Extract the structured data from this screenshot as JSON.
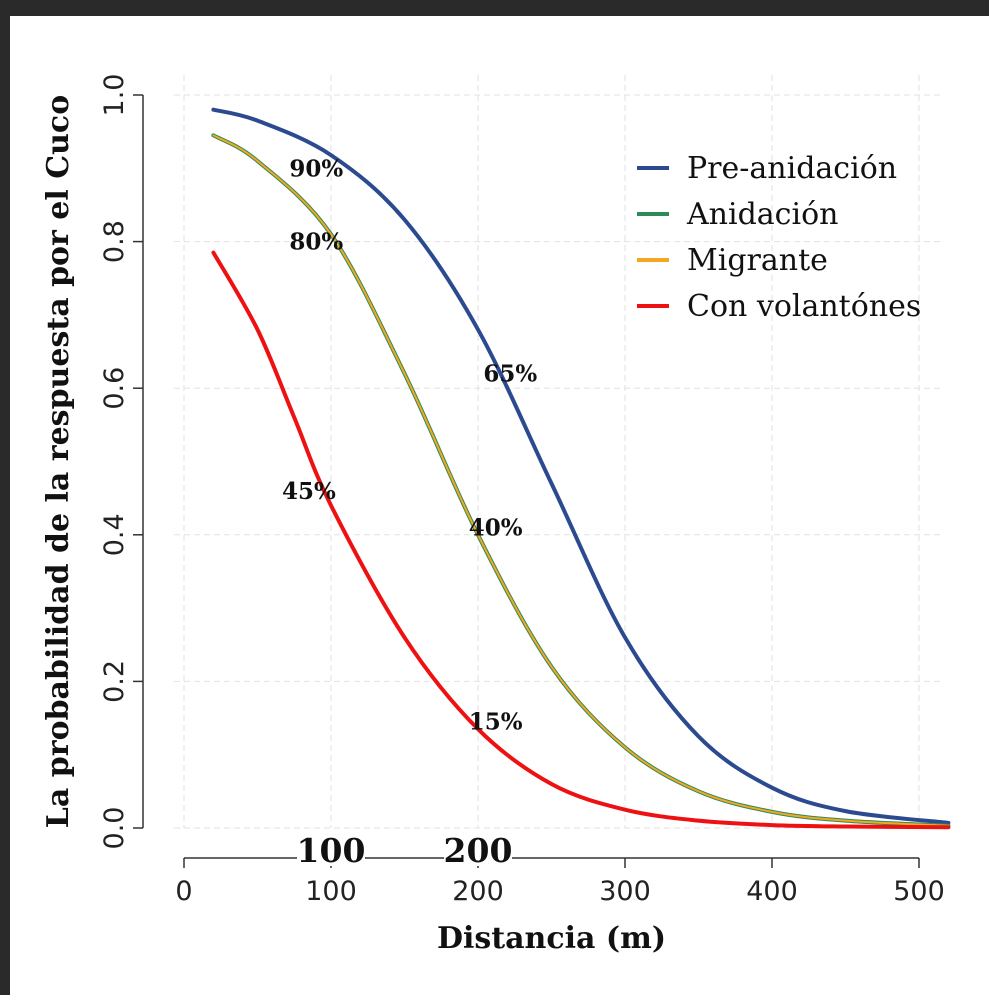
{
  "chart_data": {
    "type": "line",
    "title": "",
    "xlabel": "Distancia (m)",
    "ylabel": "La probabilidad de la respuesta por el Cuco",
    "xlim": [
      0,
      520
    ],
    "ylim": [
      0,
      1.0
    ],
    "x_ticks": [
      "0",
      "100",
      "200",
      "300",
      "400",
      "500"
    ],
    "y_ticks": [
      "0.0",
      "0.2",
      "0.4",
      "0.6",
      "0.8",
      "1.0"
    ],
    "grid": true,
    "legend_position": "top-right",
    "series": [
      {
        "name": "Pre-anidación",
        "color": "#2b4a8f",
        "x": [
          20,
          50,
          100,
          150,
          200,
          250,
          300,
          350,
          400,
          450,
          520
        ],
        "y": [
          0.98,
          0.965,
          0.918,
          0.83,
          0.68,
          0.47,
          0.26,
          0.125,
          0.055,
          0.023,
          0.007
        ]
      },
      {
        "name": "Anidación",
        "color": "#2e8b57",
        "x": [
          20,
          50,
          100,
          150,
          200,
          250,
          300,
          350,
          400,
          450,
          520
        ],
        "y": [
          0.945,
          0.91,
          0.81,
          0.62,
          0.4,
          0.22,
          0.11,
          0.05,
          0.022,
          0.01,
          0.003
        ]
      },
      {
        "name": "Migrante",
        "color": "#f5a623",
        "x": [
          20,
          50,
          100,
          150,
          200,
          250,
          300,
          350,
          400,
          450,
          520
        ],
        "y": [
          0.945,
          0.91,
          0.81,
          0.62,
          0.4,
          0.22,
          0.11,
          0.05,
          0.022,
          0.01,
          0.003
        ]
      },
      {
        "name": "Con volantónes",
        "color": "#ee1111",
        "x": [
          20,
          50,
          75,
          100,
          150,
          200,
          250,
          300,
          350,
          400,
          450,
          520
        ],
        "y": [
          0.785,
          0.68,
          0.56,
          0.44,
          0.26,
          0.135,
          0.06,
          0.025,
          0.01,
          0.004,
          0.002,
          0.001
        ]
      }
    ],
    "annotations": [
      {
        "text": "90%",
        "x": 90,
        "y": 0.9
      },
      {
        "text": "80%",
        "x": 90,
        "y": 0.8
      },
      {
        "text": "65%",
        "x": 222,
        "y": 0.62
      },
      {
        "text": "45%",
        "x": 85,
        "y": 0.46
      },
      {
        "text": "40%",
        "x": 212,
        "y": 0.41
      },
      {
        "text": "15%",
        "x": 212,
        "y": 0.145
      }
    ],
    "overlay_labels": [
      {
        "text": "100",
        "x": 100
      },
      {
        "text": "200",
        "x": 200
      }
    ]
  }
}
